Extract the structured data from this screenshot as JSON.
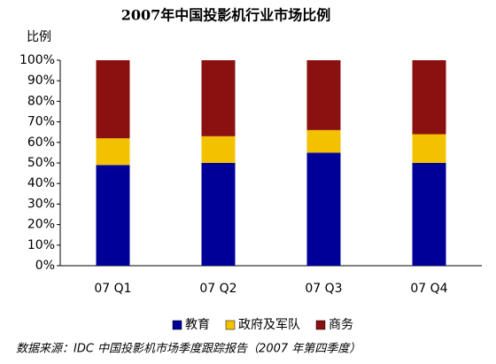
{
  "chart_data": {
    "type": "stacked_bar",
    "title": "2007年中国投影机行业市场比例",
    "y_label": "比例",
    "categories": [
      "07 Q1",
      "07 Q2",
      "07 Q3",
      "07 Q4"
    ],
    "series": [
      {
        "name": "教育",
        "color": "#000099",
        "values": [
          49,
          50,
          55,
          50
        ]
      },
      {
        "name": "政府及军队",
        "color": "#f2c200",
        "values": [
          13,
          13,
          11,
          14
        ]
      },
      {
        "name": "商务",
        "color": "#8b1010",
        "values": [
          38,
          37,
          34,
          36
        ]
      }
    ],
    "ylim": [
      0,
      100
    ],
    "yticks": [
      {
        "value": 0,
        "label": "0%"
      },
      {
        "value": 10,
        "label": "10%"
      },
      {
        "value": 20,
        "label": "20%"
      },
      {
        "value": 30,
        "label": "30%"
      },
      {
        "value": 40,
        "label": "40%"
      },
      {
        "value": 50,
        "label": "50%"
      },
      {
        "value": 60,
        "label": "60%"
      },
      {
        "value": 70,
        "label": "70%"
      },
      {
        "value": 80,
        "label": "80%"
      },
      {
        "value": 90,
        "label": "90%"
      },
      {
        "value": 100,
        "label": "100%"
      }
    ],
    "source_note": "数据来源：IDC 中国投影机市场季度跟踪报告（2007 年第四季度）"
  }
}
